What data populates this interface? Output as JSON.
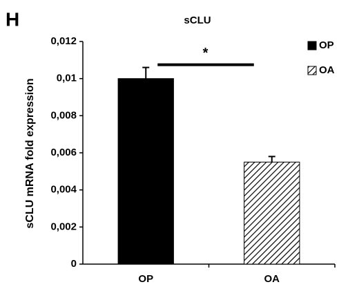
{
  "chart_data": {
    "type": "bar",
    "panel_label": "H",
    "title": "sCLU",
    "y_label": "sCLU mRNA fold expression",
    "categories": [
      "OP",
      "OA"
    ],
    "values": [
      0.01,
      0.0055
    ],
    "errors": [
      0.0006,
      0.0003
    ],
    "color": "#000000",
    "patterns": [
      "solid",
      "hatch"
    ],
    "ylim": [
      0,
      0.012
    ],
    "yticks": [
      0,
      {
        "value": 0.002,
        "label": "0,002"
      },
      {
        "value": 0.004,
        "label": "0,004"
      },
      {
        "value": 0.006,
        "label": "0,006"
      },
      {
        "value": 0.008,
        "label": "0,008"
      },
      {
        "value": 0.01,
        "label": "0,01"
      },
      {
        "value": 0.012,
        "label": "0,012"
      }
    ],
    "annotation": "*",
    "legend": "top-right"
  }
}
